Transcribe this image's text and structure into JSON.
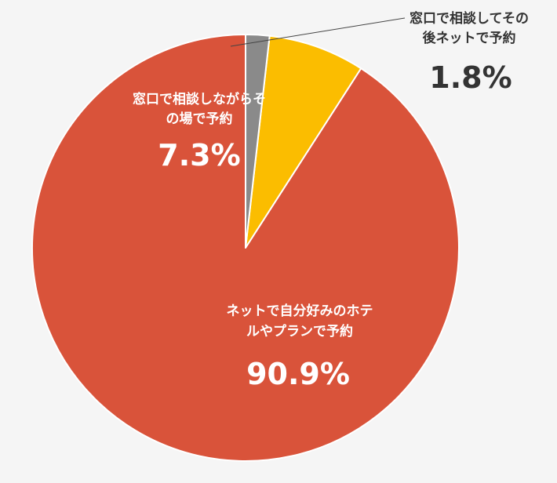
{
  "chart_data": {
    "type": "pie",
    "categories": [
      "ネットで自分好みのホテルやプランで予約",
      "窓口で相談しながらその場で予約",
      "窓口で相談してその後ネットで予約"
    ],
    "values": [
      90.9,
      7.3,
      1.8
    ],
    "value_labels": [
      "90.9%",
      "7.3%",
      "1.8%"
    ],
    "label_lines": [
      [
        "ネットで自分好みのホテ",
        "ルやプランで予約"
      ],
      [
        "窓口で相談しながらそ",
        "の場で予約"
      ],
      [
        "窓口で相談してその",
        "後ネットで予約"
      ]
    ],
    "colors": [
      "#d9533a",
      "#fbbd00",
      "#8a8a8a"
    ],
    "label_colors": [
      "#ffffff",
      "#ffffff",
      "#333333"
    ],
    "start_angle": "12 o'clock",
    "direction": "counterclockwise",
    "legend": "none",
    "leader_line_slices": [
      2
    ]
  }
}
